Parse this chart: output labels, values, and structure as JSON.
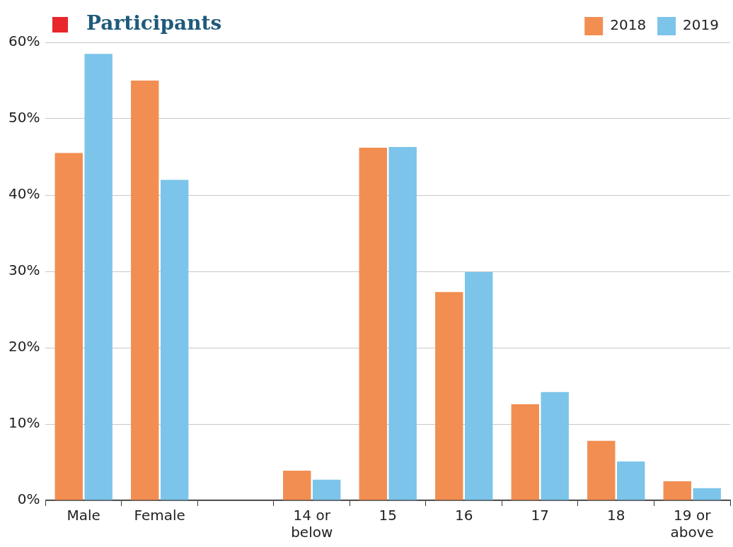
{
  "chart_data": {
    "type": "bar",
    "title": "Participants",
    "categories": [
      "Male",
      "Female",
      null,
      "14 or below",
      "15",
      "16",
      "17",
      "18",
      "19 or above"
    ],
    "series": [
      {
        "name": "2018",
        "color": "#f28e52",
        "values": [
          45.5,
          55,
          null,
          3.9,
          46.2,
          27.3,
          12.6,
          7.8,
          2.5
        ]
      },
      {
        "name": "2019",
        "color": "#7cc4ea",
        "values": [
          58.5,
          42,
          null,
          2.7,
          46.3,
          29.9,
          14.2,
          5.1,
          1.6
        ]
      }
    ],
    "ylim": [
      0,
      60
    ],
    "yticks": [
      {
        "value": 0,
        "label": "0%"
      },
      {
        "value": 10,
        "label": "10%"
      },
      {
        "value": 20,
        "label": "20%"
      },
      {
        "value": 30,
        "label": "30%"
      },
      {
        "value": 40,
        "label": "40%"
      },
      {
        "value": 50,
        "label": "50%"
      },
      {
        "value": 60,
        "label": "60%"
      }
    ],
    "grid": "y",
    "legend": "top right"
  }
}
